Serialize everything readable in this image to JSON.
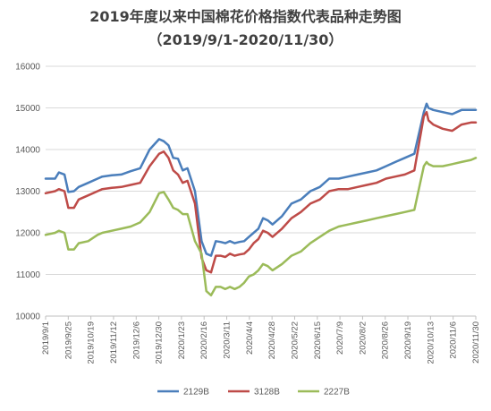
{
  "chart_data": {
    "type": "line",
    "title": "2019年度以来中国棉花价格指数代表品种走势图",
    "subtitle": "（2019/9/1-2020/11/30）",
    "xlabel": "",
    "ylabel": "",
    "ylim": [
      10000,
      16000
    ],
    "yticks": [
      10000,
      11000,
      12000,
      13000,
      14000,
      15000,
      16000
    ],
    "x_tick_labels": [
      "2019/9/1",
      "2019/9/25",
      "2019/10/19",
      "2019/11/12",
      "2019/12/6",
      "2019/12/30",
      "2020/1/23",
      "2020/2/16",
      "2020/3/11",
      "2020/4/4",
      "2020/4/28",
      "2020/5/22",
      "2020/6/15",
      "2020/7/9",
      "2020/8/2",
      "2020/8/26",
      "2020/9/19",
      "2020/10/13",
      "2020/11/6",
      "2020/11/30"
    ],
    "grid": true,
    "legend": "bottom",
    "x_day_offsets": [
      0,
      10,
      14,
      20,
      24,
      30,
      35,
      45,
      55,
      60,
      70,
      80,
      90,
      100,
      110,
      120,
      125,
      130,
      135,
      140,
      145,
      150,
      158,
      165,
      170,
      175,
      180,
      185,
      190,
      195,
      200,
      205,
      210,
      215,
      220,
      225,
      230,
      235,
      240,
      250,
      260,
      270,
      280,
      290,
      300,
      310,
      320,
      330,
      340,
      350,
      360,
      370,
      380,
      390,
      400,
      403,
      405,
      410,
      420,
      430,
      440,
      450,
      455
    ],
    "series": [
      {
        "name": "2129B",
        "color": "#4a7ebb",
        "values": [
          13300,
          13300,
          13450,
          13400,
          12980,
          13000,
          13100,
          13200,
          13300,
          13350,
          13380,
          13400,
          13480,
          13550,
          14000,
          14250,
          14200,
          14100,
          13800,
          13780,
          13500,
          13550,
          13000,
          11800,
          11500,
          11450,
          11800,
          11780,
          11750,
          11800,
          11750,
          11780,
          11800,
          11900,
          12000,
          12100,
          12350,
          12300,
          12200,
          12400,
          12700,
          12800,
          13000,
          13100,
          13300,
          13300,
          13350,
          13400,
          13450,
          13500,
          13600,
          13700,
          13800,
          13900,
          14900,
          15100,
          15000,
          14950,
          14900,
          14850,
          14950,
          14950,
          14950
        ]
      },
      {
        "name": "3128B",
        "color": "#be4b48",
        "values": [
          12950,
          13000,
          13050,
          13000,
          12600,
          12600,
          12800,
          12900,
          13000,
          13050,
          13080,
          13100,
          13150,
          13200,
          13600,
          13900,
          13950,
          13800,
          13500,
          13400,
          13200,
          13250,
          12700,
          11400,
          11100,
          11050,
          11450,
          11450,
          11420,
          11500,
          11450,
          11480,
          11500,
          11600,
          11750,
          11850,
          12050,
          12000,
          11900,
          12100,
          12350,
          12500,
          12700,
          12800,
          13000,
          13050,
          13050,
          13100,
          13150,
          13200,
          13300,
          13350,
          13400,
          13500,
          14800,
          14900,
          14700,
          14600,
          14500,
          14450,
          14600,
          14650,
          14650
        ]
      },
      {
        "name": "2227B",
        "color": "#9bbb59",
        "values": [
          11950,
          12000,
          12050,
          12000,
          11600,
          11600,
          11750,
          11800,
          11950,
          12000,
          12050,
          12100,
          12150,
          12250,
          12500,
          12950,
          12980,
          12800,
          12600,
          12550,
          12450,
          12450,
          11800,
          11500,
          10600,
          10500,
          10700,
          10700,
          10650,
          10700,
          10650,
          10700,
          10800,
          10950,
          11000,
          11100,
          11250,
          11200,
          11100,
          11250,
          11450,
          11550,
          11750,
          11900,
          12050,
          12150,
          12200,
          12250,
          12300,
          12350,
          12400,
          12450,
          12500,
          12550,
          13600,
          13700,
          13650,
          13600,
          13600,
          13650,
          13700,
          13750,
          13800
        ]
      }
    ]
  }
}
